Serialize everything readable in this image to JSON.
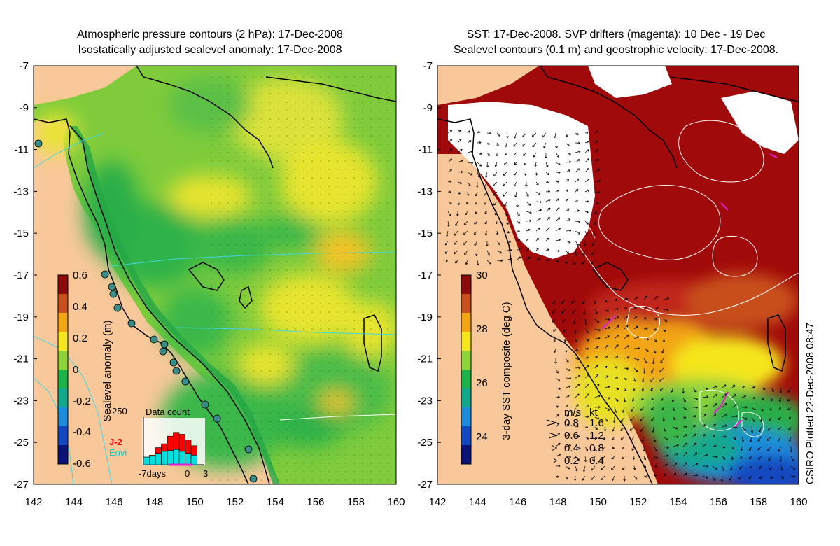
{
  "left_panel": {
    "title_line1": "Atmospheric pressure contours (2 hPa): 17-Dec-2008",
    "title_line2": "Isostatically adjusted sealevel anomaly: 17-Dec-2008",
    "colorbar": {
      "label": "Sealevel anomaly (m)",
      "ticks": [
        "0.6",
        "0.4",
        "0.2",
        "0",
        "-0.2",
        "-0.4",
        "-0.6"
      ],
      "colors": [
        "#8b0a0a",
        "#c8501e",
        "#f2a515",
        "#f5e61e",
        "#8ed33a",
        "#1fb24a",
        "#12a88c",
        "#1e8cdc",
        "#1448c0",
        "#0a1478"
      ]
    },
    "histogram": {
      "title": "Data count",
      "y_max_label": "250",
      "x_labels": [
        "-7days",
        "0",
        "3"
      ],
      "legend": [
        {
          "name": "J-2",
          "color": "#ff0000"
        },
        {
          "name": "Envi",
          "color": "#00e0e0"
        }
      ],
      "j2_counts": [
        40,
        50,
        90,
        110,
        150,
        170,
        160,
        130,
        100
      ],
      "envi_counts": [
        40,
        45,
        60,
        70,
        75,
        80,
        70,
        60,
        50
      ]
    }
  },
  "right_panel": {
    "title_line1": "SST: 17-Dec-2008. SVP drifters (magenta): 10 Dec - 19 Dec",
    "title_line2": "Sealevel contours (0.1 m) and geostrophic velocity: 17-Dec-2008.",
    "colorbar": {
      "label": "3-day SST composite (deg C)",
      "ticks": [
        "30",
        "28",
        "26",
        "24"
      ],
      "colors": [
        "#8b0a0a",
        "#c8501e",
        "#f2a515",
        "#f5e61e",
        "#8ed33a",
        "#1fb24a",
        "#12a88c",
        "#1e8cdc",
        "#1448c0",
        "#0a1478"
      ]
    },
    "velocity_legend": {
      "header_ms": "m/s",
      "header_kt": "kt",
      "rows": [
        {
          "ms": "0.8",
          "kt": "1.6"
        },
        {
          "ms": "0.6",
          "kt": "1.2"
        },
        {
          "ms": "0.4",
          "kt": "0.8"
        },
        {
          "ms": "0.2",
          "kt": "0.4"
        }
      ]
    }
  },
  "axes": {
    "lat_labels": [
      "-7",
      "-9",
      "-11",
      "-13",
      "-15",
      "-17",
      "-19",
      "-21",
      "-23",
      "-25",
      "-27"
    ],
    "lon_labels": [
      "142",
      "144",
      "146",
      "148",
      "150",
      "152",
      "154",
      "156",
      "158",
      "160"
    ]
  },
  "credit": "CSIRO Plotted 22-Dec-2008 08:47",
  "colors": {
    "land": "#f9c89a",
    "ocean_green": "#3cb64a",
    "ocean_yellow": "#e5e62a",
    "sst_dark_red": "#a00a0a",
    "contour_cyan": "#40d8e0",
    "drifter_magenta": "#e020d0"
  }
}
